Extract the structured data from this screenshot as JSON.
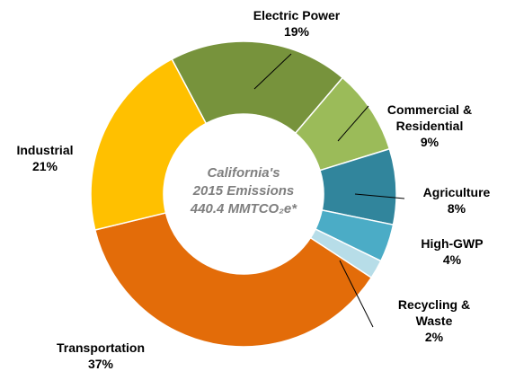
{
  "chart_data": {
    "type": "donut",
    "center_text": [
      "California's",
      "2015 Emissions",
      "440.4 MMTCO₂e*"
    ],
    "categories": [
      "Electric Power",
      "Commercial & Residential",
      "Agriculture",
      "High-GWP",
      "Recycling & Waste",
      "Transportation",
      "Industrial"
    ],
    "values": [
      19,
      9,
      8,
      4,
      2,
      37,
      21
    ],
    "value_labels": [
      "19%",
      "9%",
      "8%",
      "4%",
      "2%",
      "37%",
      "21%"
    ],
    "colors": [
      "#77933c",
      "#9bbb59",
      "#31859c",
      "#4bacc6",
      "#b7dde8",
      "#e36c09",
      "#ffc000"
    ]
  }
}
